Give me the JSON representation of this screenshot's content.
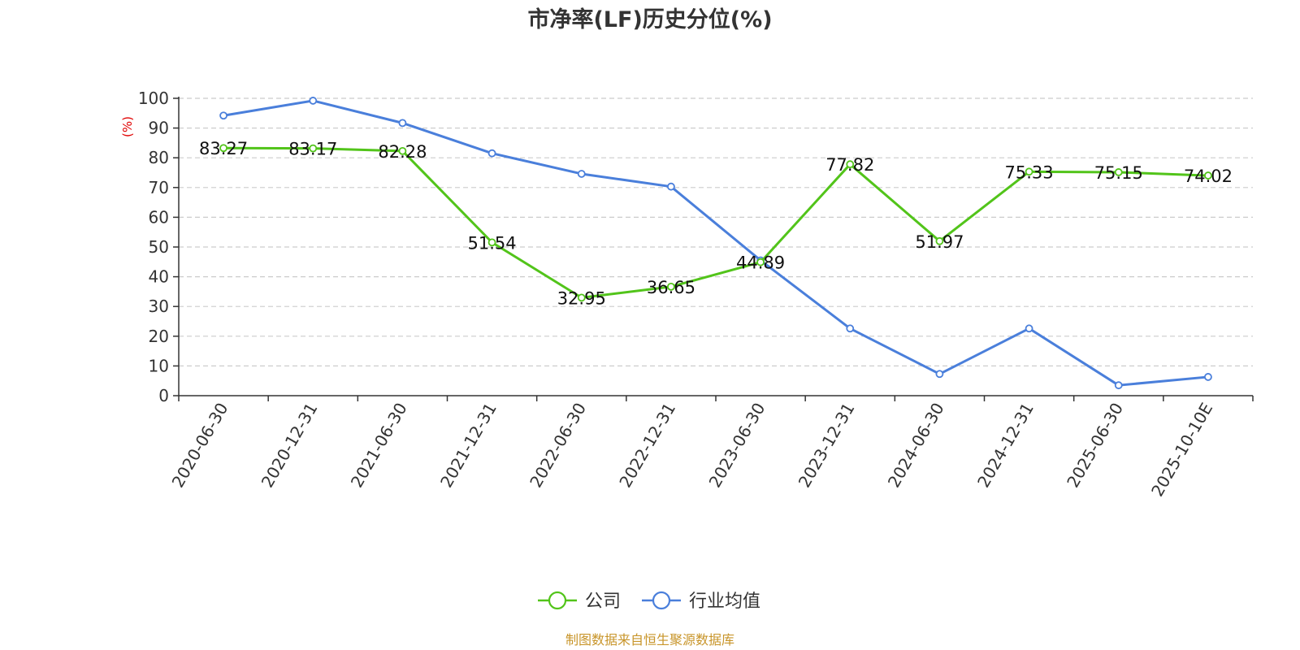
{
  "chart_data": {
    "type": "line",
    "title": "市净率(LF)历史分位(%)",
    "ylabel": "(%)",
    "xlabel": "",
    "ylim": [
      0,
      100
    ],
    "yticks": [
      0,
      10,
      20,
      30,
      40,
      50,
      60,
      70,
      80,
      90,
      100
    ],
    "grid": true,
    "legend_position": "bottom",
    "categories": [
      "2020-06-30",
      "2020-12-31",
      "2021-06-30",
      "2021-12-31",
      "2022-06-30",
      "2022-12-31",
      "2023-06-30",
      "2023-12-31",
      "2024-06-30",
      "2024-12-31",
      "2025-06-30",
      "2025-10-10E"
    ],
    "series": [
      {
        "name": "公司",
        "color": "#52c41a",
        "values": [
          83.27,
          83.17,
          82.28,
          51.54,
          32.95,
          36.65,
          44.89,
          77.82,
          51.97,
          75.33,
          75.15,
          74.02
        ],
        "labels": [
          "83.27",
          "83.17",
          "82.28",
          "51.54",
          "32.95",
          "36.65",
          "44.89",
          "77.82",
          "51.97",
          "75.33",
          "75.15",
          "74.02"
        ]
      },
      {
        "name": "行业均值",
        "color": "#4a7fdb",
        "values": [
          94.2,
          99.2,
          91.7,
          81.5,
          74.6,
          70.3,
          45.5,
          22.6,
          7.3,
          22.6,
          3.5,
          6.3
        ]
      }
    ],
    "source": "制图数据来自恒生聚源数据库"
  }
}
